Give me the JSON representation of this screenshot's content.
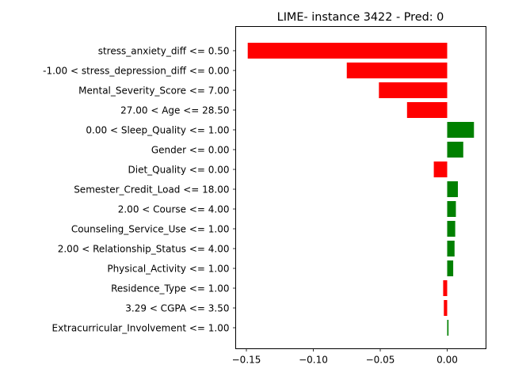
{
  "chart_data": {
    "type": "bar",
    "orientation": "horizontal",
    "title": "LIME- instance 3422 - Pred: 0",
    "xlabel": "",
    "ylabel": "",
    "xlim": [
      -0.158,
      0.029
    ],
    "xticks": [
      -0.15,
      -0.1,
      -0.05,
      0.0
    ],
    "xtick_labels": [
      "−0.15",
      "−0.10",
      "−0.05",
      "0.00"
    ],
    "grid": false,
    "legend": false,
    "colors": {
      "positive": "#008000",
      "negative": "#ff0000"
    },
    "categories": [
      "stress_anxiety_diff <= 0.50",
      "-1.00 < stress_depression_diff <= 0.00",
      "Mental_Severity_Score <= 7.00",
      "27.00 < Age <= 28.50",
      "0.00 < Sleep_Quality <= 1.00",
      "Gender <= 0.00",
      "Diet_Quality <= 0.00",
      "Semester_Credit_Load <= 18.00",
      "2.00 < Course <= 4.00",
      "Counseling_Service_Use <= 1.00",
      "2.00 < Relationship_Status <= 4.00",
      "Physical_Activity <= 1.00",
      "Residence_Type <= 1.00",
      "3.29 < CGPA <= 3.50",
      "Extracurricular_Involvement <= 1.00"
    ],
    "values": [
      -0.149,
      -0.075,
      -0.051,
      -0.03,
      0.02,
      0.012,
      -0.01,
      0.008,
      0.0065,
      0.006,
      0.0055,
      0.0045,
      -0.003,
      -0.0025,
      0.001
    ]
  }
}
